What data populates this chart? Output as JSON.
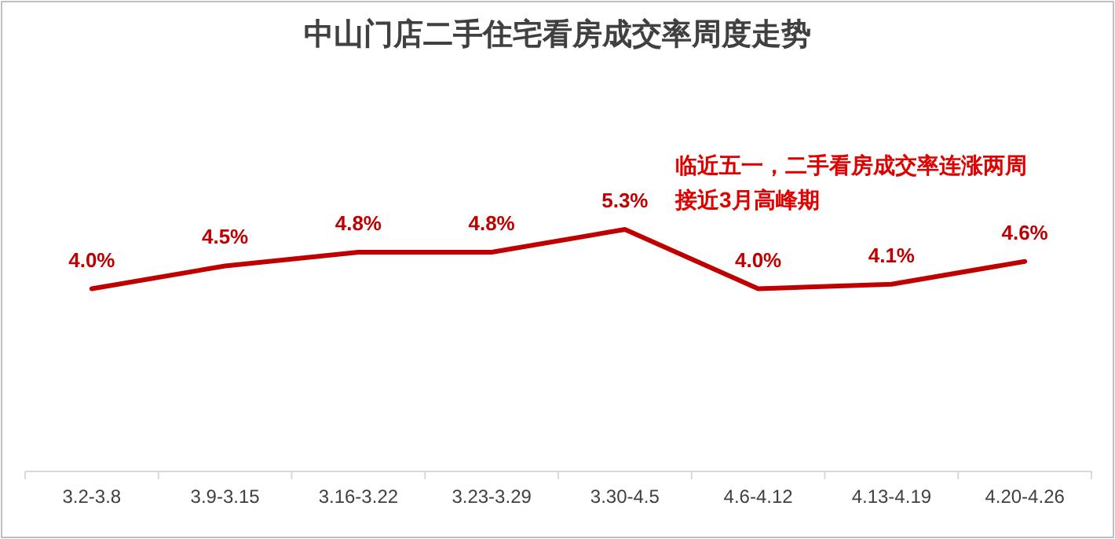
{
  "chart_data": {
    "type": "line",
    "title": "中山门店二手住宅看房成交率周度走势",
    "categories": [
      "3.2-3.8",
      "3.9-3.15",
      "3.16-3.22",
      "3.23-3.29",
      "3.30-4.5",
      "4.6-4.12",
      "4.13-4.19",
      "4.20-4.26"
    ],
    "series": [
      {
        "color": "#c00000",
        "values": [
          4.0,
          4.5,
          4.8,
          4.8,
          5.3,
          4.0,
          4.1,
          4.6
        ],
        "value_labels": [
          "4.0%",
          "4.5%",
          "4.8%",
          "4.8%",
          "5.3%",
          "4.0%",
          "4.1%",
          "4.6%"
        ]
      }
    ],
    "annotations": [
      "临近五一，二手看房成交率连涨两周",
      "接近3月高峰期"
    ],
    "marker": "none",
    "line_style": "solid",
    "grid": false
  }
}
